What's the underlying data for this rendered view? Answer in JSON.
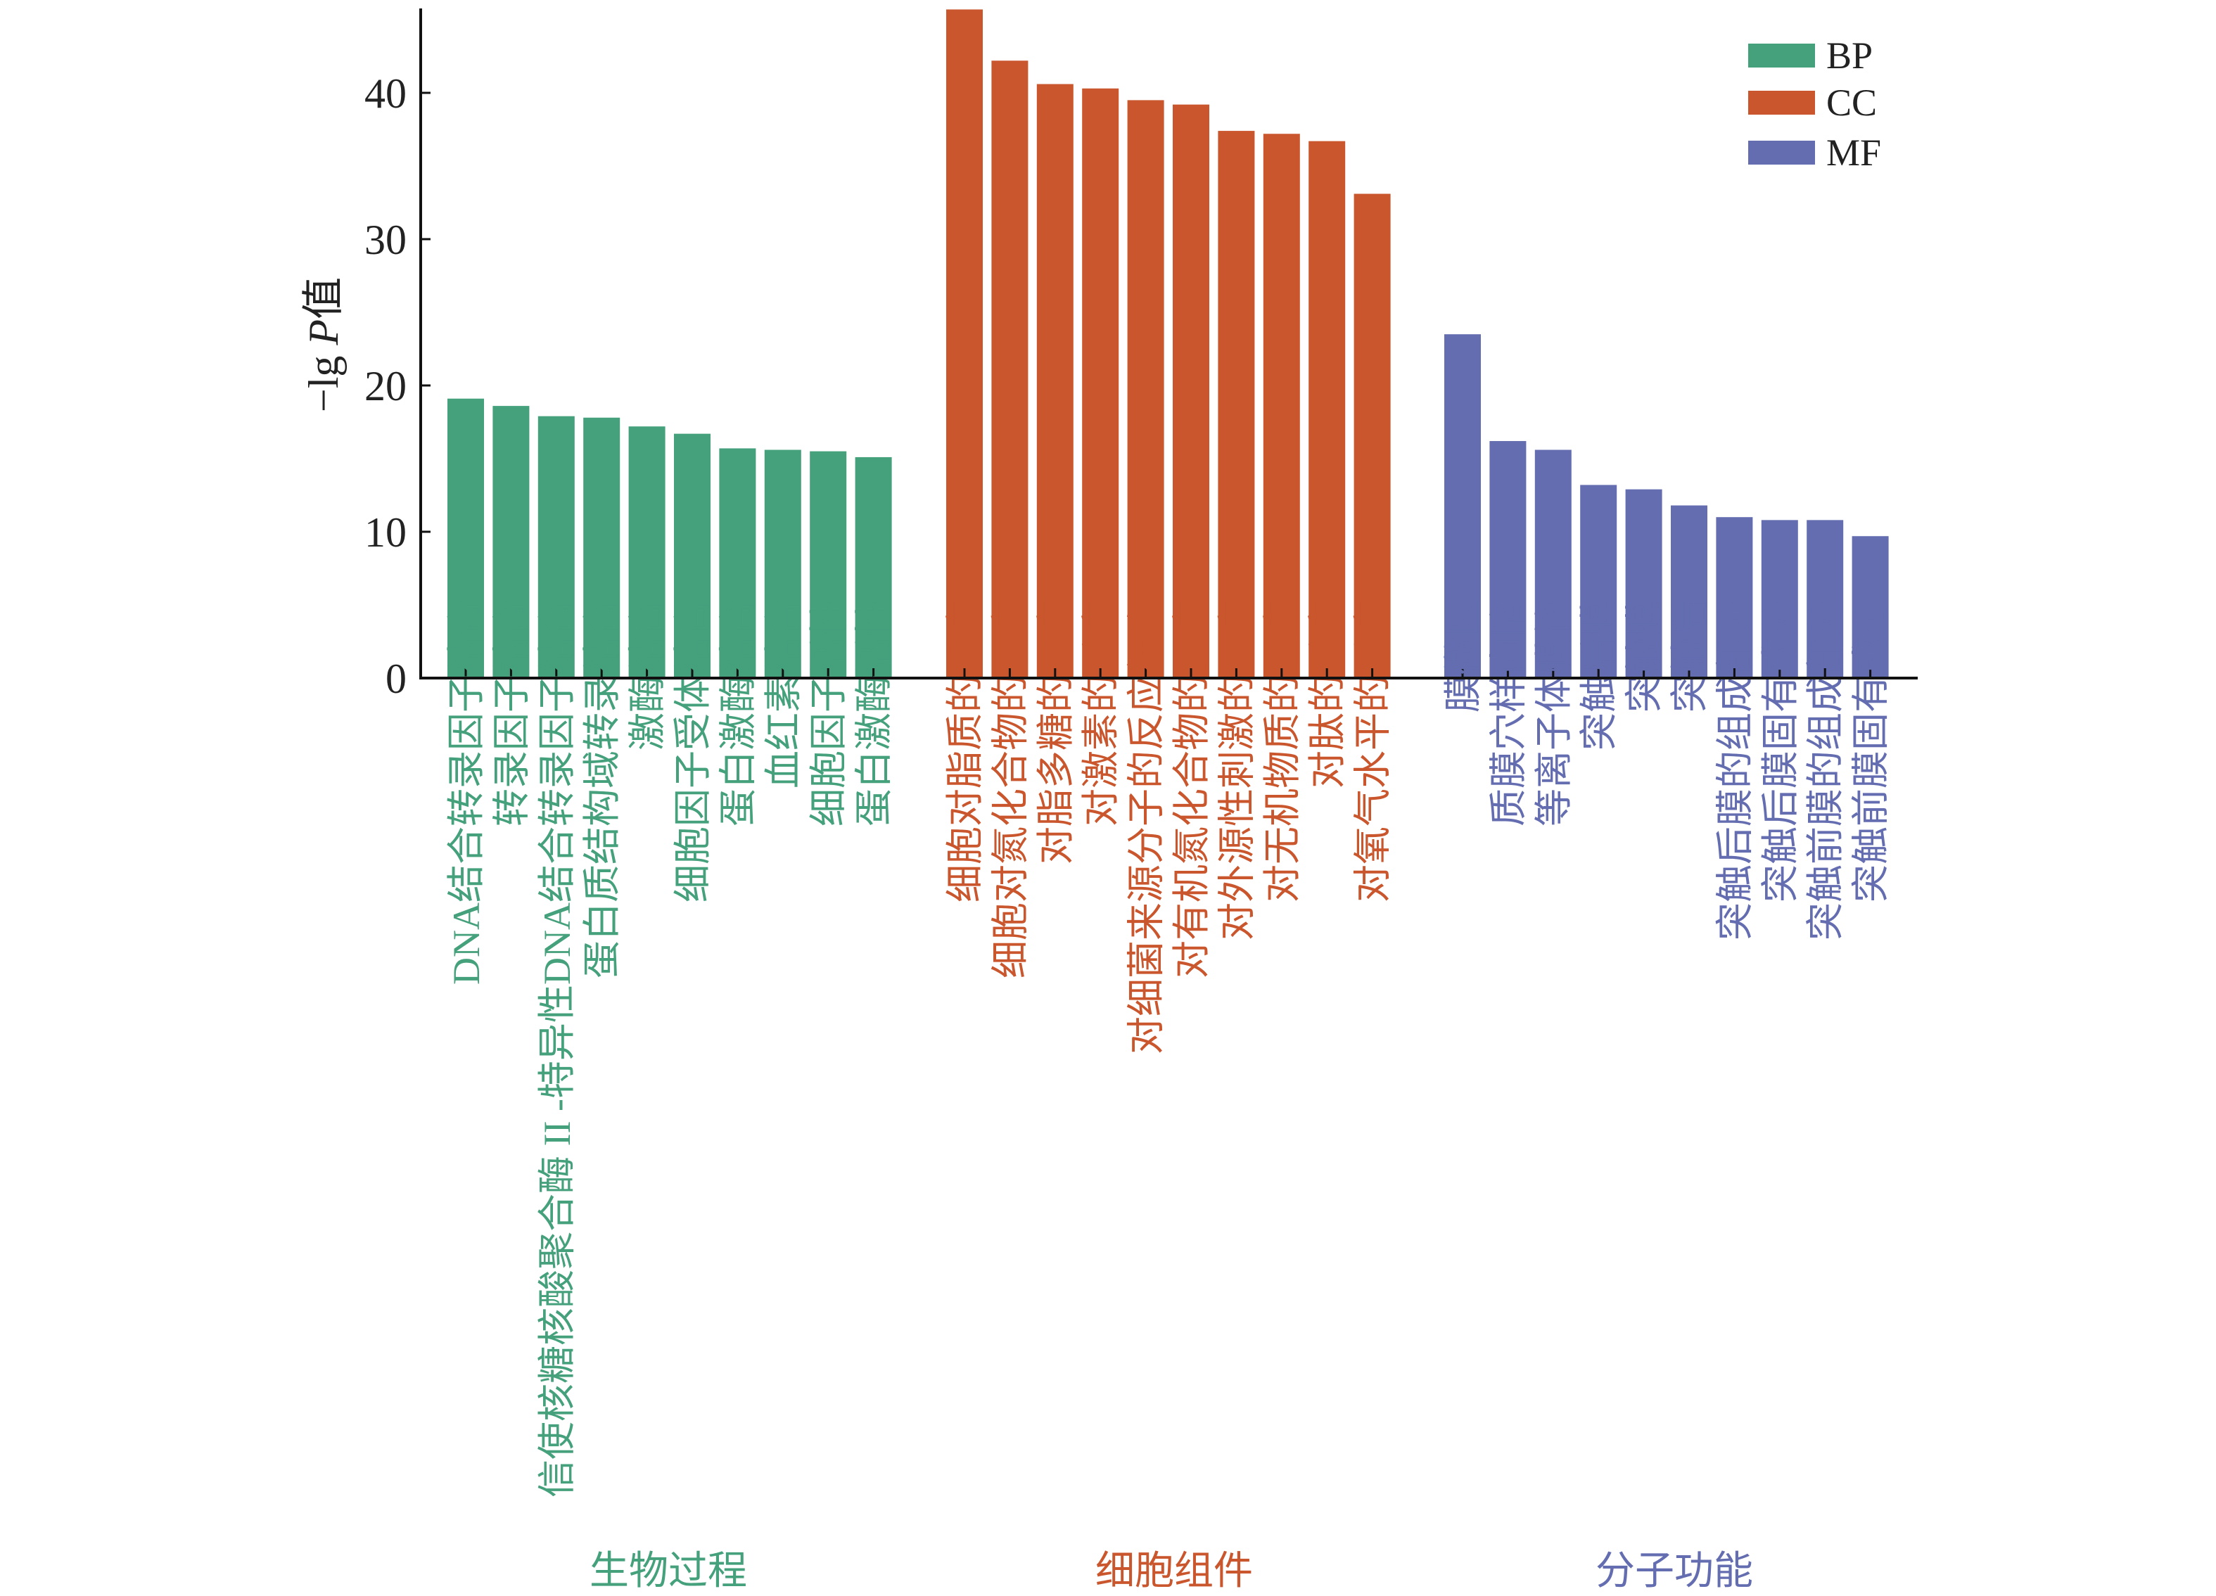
{
  "chart_data": {
    "type": "bar",
    "title": "",
    "xlabel": "",
    "ylabel": {
      "prefix": "−lg ",
      "italic": "P",
      "suffix": "值"
    },
    "ylim": [
      0,
      45.7
    ],
    "yticks": [
      "0",
      "10",
      "20",
      "30",
      "40"
    ],
    "grid": false,
    "legend_position": "top-right",
    "legend": [
      {
        "key": "BP",
        "label": "BP",
        "color": "#45a07c"
      },
      {
        "key": "CC",
        "label": "CC",
        "color": "#c9562d"
      },
      {
        "key": "MF",
        "label": "MF",
        "color": "#636db0"
      }
    ],
    "groups": [
      {
        "key": "BP",
        "title": "生物过程",
        "color": "#45a07c",
        "categories": [
          "DNA结合转录因子结合",
          "转录因子结合",
          "信使核糖核酸聚合酶 II -特异性DNA结合转录因子结合",
          "蛋白质结构域转录结合",
          "激酶结合",
          "细胞因子受体结合",
          "蛋白激酶结合",
          "血红素结合",
          "细胞因子活性",
          "蛋白激酶活性"
        ],
        "values": [
          19.1,
          18.6,
          17.9,
          17.8,
          17.2,
          16.7,
          15.7,
          15.6,
          15.5,
          15.1
        ]
      },
      {
        "key": "CC",
        "title": "细胞组件",
        "color": "#c9562d",
        "categories": [
          "细胞对脂质的反应",
          "细胞对氮化合物的反应",
          "对脂多糖的反应",
          "对激素的反应",
          "对细菌来源分子的反应细胞",
          "对有机氮化合物的反应",
          "对外源性刺激的反应",
          "对无机物质的反应",
          "对肽的反应",
          "对氧气水平的反应"
        ],
        "values": [
          45.7,
          42.2,
          40.6,
          40.3,
          39.5,
          39.2,
          37.4,
          37.2,
          36.7,
          33.1
        ]
      },
      {
        "key": "MF",
        "title": "分子功能",
        "color": "#636db0",
        "categories": [
          "膜微区",
          "质膜穴样内陷",
          "等离子体膜筏",
          "突触后膜",
          "突触膜",
          "突触后",
          "突触后膜的组成部分",
          "突触后膜固有成分",
          "突触前膜的组成部分",
          "突触前膜固有成分"
        ],
        "values": [
          23.5,
          16.2,
          15.6,
          13.2,
          12.9,
          11.8,
          11.0,
          10.8,
          10.8,
          9.7
        ]
      }
    ]
  }
}
